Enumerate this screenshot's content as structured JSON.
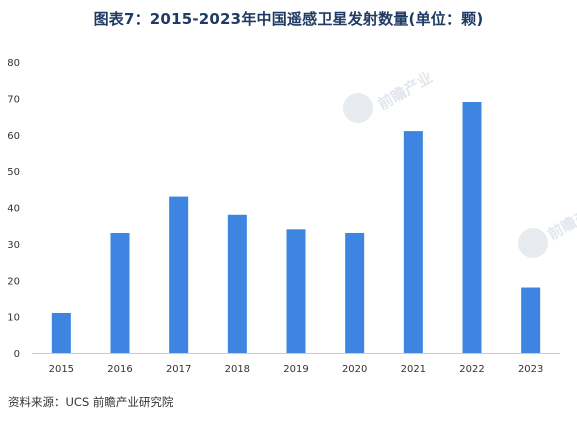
{
  "title": "图表7：2015-2023年中国遥感卫星发射数量(单位：颗)",
  "source": "资料来源：UCS 前瞻产业研究院",
  "watermark": {
    "text": "前瞻产业"
  },
  "colors": {
    "bar": "#3d85e0",
    "title": "#1f3a63",
    "axis_text": "#333333",
    "axis_line": "#cccccc"
  },
  "chart_data": {
    "type": "bar",
    "categories": [
      "2015",
      "2016",
      "2017",
      "2018",
      "2019",
      "2020",
      "2021",
      "2022",
      "2023"
    ],
    "values": [
      11,
      33,
      43,
      38,
      34,
      33,
      61,
      69,
      18
    ],
    "yticks": [
      0,
      10,
      20,
      30,
      40,
      50,
      60,
      70,
      80
    ],
    "ylim": [
      0,
      80
    ],
    "grid": false,
    "legend": "none"
  }
}
